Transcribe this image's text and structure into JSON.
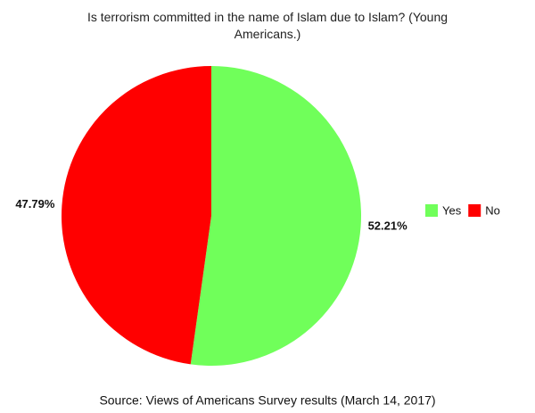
{
  "chart_data": {
    "type": "pie",
    "title": "Is terrorism committed in the name of Islam due to Islam? (Young Americans.)",
    "categories": [
      "Yes",
      "No"
    ],
    "values": [
      52.21,
      47.79
    ],
    "value_labels": [
      "52.21%",
      "47.79%"
    ],
    "colors": [
      "#70ff5a",
      "#ff0000"
    ],
    "legend": "right",
    "source": "Source: Views of Americans Survey results (March 14, 2017)"
  }
}
